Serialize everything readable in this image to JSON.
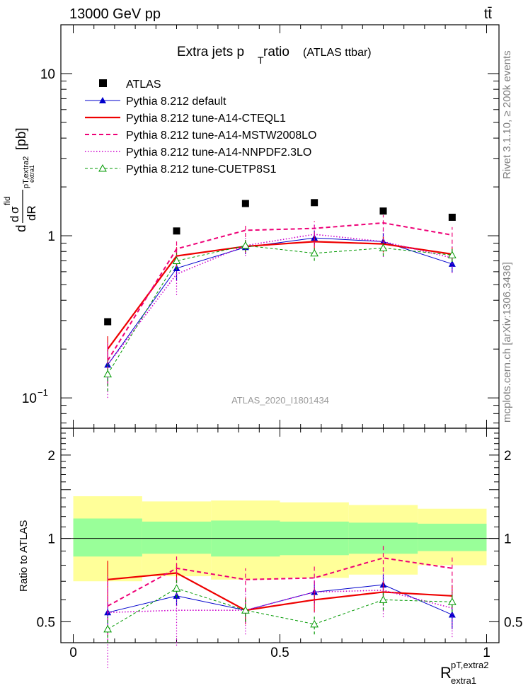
{
  "header": {
    "energy_label": "13000 GeV pp",
    "process_label": "tt̄"
  },
  "side_labels": {
    "rivet": "Rivet 3.1.10, ≥ 200k events",
    "mcplots": "mcplots.cern.ch [arXiv:1306.3436]"
  },
  "watermark": "ATLAS_2020_I1801434",
  "chart_data": [
    {
      "type": "line",
      "panel": "main",
      "title_main": "Extra jets p",
      "title_sub": "T",
      "title_tail": " ratio",
      "title_suffix": "(ATLAS ttbar)",
      "ylabel_parts": {
        "d1": "d",
        "d2": "d",
        "sigma": "σ",
        "fid": "fid",
        "dR": "dR",
        "sub": "pT,extra2",
        "subsub": "extra1",
        "unit": "[pb]"
      },
      "log_y": true,
      "xlim": [
        -0.03,
        1.03
      ],
      "ylim": [
        0.065,
        20
      ],
      "y_ticks": [
        {
          "value": 0.1,
          "mantissa": "10",
          "exponent": "−1"
        },
        {
          "value": 1,
          "mantissa": "1",
          "exponent": ""
        },
        {
          "value": 10,
          "mantissa": "10",
          "exponent": ""
        }
      ],
      "x": [
        0.0833,
        0.25,
        0.4167,
        0.5833,
        0.75,
        0.9167
      ],
      "bins": [
        0,
        0.1667,
        0.3333,
        0.5,
        0.6667,
        0.8333,
        1.0
      ],
      "series": [
        {
          "name": "ATLAS",
          "style": "data",
          "color": "#000000",
          "values": [
            0.295,
            1.07,
            1.58,
            1.6,
            1.42,
            1.3
          ]
        },
        {
          "name": "Pythia 8.212 default",
          "style": "solid-triangle",
          "color": "#0000cc",
          "values": [
            0.16,
            0.63,
            0.85,
            0.97,
            0.92,
            0.67
          ],
          "err": [
            0.04,
            0.1,
            0.08,
            0.1,
            0.12,
            0.08
          ]
        },
        {
          "name": "Pythia 8.212 tune-A14-CTEQL1",
          "style": "solid-thick",
          "color": "#ee0000",
          "values": [
            0.2,
            0.75,
            0.86,
            0.92,
            0.89,
            0.77
          ],
          "err": [
            0.04,
            0.1,
            0.08,
            0.1,
            0.1,
            0.08
          ]
        },
        {
          "name": "Pythia 8.212 tune-A14-MSTW2008LO",
          "style": "dashed",
          "color": "#ee0077",
          "values": [
            0.17,
            0.83,
            1.08,
            1.11,
            1.2,
            1.01
          ],
          "err": [
            0.05,
            0.12,
            0.1,
            0.12,
            0.14,
            0.12
          ]
        },
        {
          "name": "Pythia 8.212 tune-A14-NNPDF2.3LO",
          "style": "dotted",
          "color": "#cc00cc",
          "values": [
            0.16,
            0.58,
            0.87,
            1.02,
            0.92,
            0.73
          ],
          "err": [
            0.06,
            0.15,
            0.12,
            0.15,
            0.18,
            0.14
          ]
        },
        {
          "name": "Pythia 8.212 tune-CUETP8S1",
          "style": "dashed-open-triangle",
          "color": "#009900",
          "values": [
            0.14,
            0.7,
            0.87,
            0.78,
            0.84,
            0.76
          ],
          "err": [
            0.03,
            0.08,
            0.07,
            0.08,
            0.09,
            0.07
          ]
        }
      ]
    },
    {
      "type": "line",
      "panel": "ratio",
      "ylabel": "Ratio to ATLAS",
      "xlabel_main": "R",
      "xlabel_sup": "pT,extra2",
      "xlabel_sub": "extra1",
      "log_y": true,
      "xlim": [
        -0.03,
        1.03
      ],
      "ylim": [
        0.42,
        2.5
      ],
      "x_ticks": [
        {
          "value": 0,
          "label": "0"
        },
        {
          "value": 0.5,
          "label": "0.5"
        },
        {
          "value": 1,
          "label": "1"
        }
      ],
      "y_ticks": [
        {
          "value": 0.5,
          "label": "0.5"
        },
        {
          "value": 1,
          "label": "1"
        },
        {
          "value": 2,
          "label": "2"
        }
      ],
      "bands": {
        "yellow_color": "#ffff99",
        "green_color": "#99ff99",
        "yellow": [
          [
            0.7,
            1.42
          ],
          [
            0.73,
            1.36
          ],
          [
            0.71,
            1.37
          ],
          [
            0.72,
            1.35
          ],
          [
            0.74,
            1.32
          ],
          [
            0.8,
            1.28
          ]
        ],
        "green": [
          [
            0.86,
            1.18
          ],
          [
            0.88,
            1.15
          ],
          [
            0.86,
            1.16
          ],
          [
            0.87,
            1.15
          ],
          [
            0.88,
            1.14
          ],
          [
            0.9,
            1.13
          ]
        ]
      },
      "series": [
        {
          "name": "Pythia 8.212 default",
          "style": "solid-triangle",
          "color": "#0000cc",
          "values": [
            0.54,
            0.62,
            0.55,
            0.64,
            0.68,
            0.53
          ],
          "err": [
            0.05,
            0.05,
            0.05,
            0.06,
            0.06,
            0.06
          ]
        },
        {
          "name": "Pythia 8.212 tune-A14-CTEQL1",
          "style": "solid-thick",
          "color": "#ee0000",
          "values": [
            0.71,
            0.75,
            0.55,
            0.6,
            0.64,
            0.62
          ],
          "err": [
            0.12,
            0.06,
            0.06,
            0.06,
            0.06,
            0.06
          ]
        },
        {
          "name": "Pythia 8.212 tune-A14-MSTW2008LO",
          "style": "dashed",
          "color": "#ee0077",
          "values": [
            0.57,
            0.78,
            0.71,
            0.72,
            0.85,
            0.78
          ],
          "err": [
            0.15,
            0.08,
            0.07,
            0.08,
            0.09,
            0.09
          ]
        },
        {
          "name": "Pythia 8.212 tune-A14-NNPDF2.3LO",
          "style": "dotted",
          "color": "#cc00cc",
          "values": [
            0.54,
            0.55,
            0.55,
            0.64,
            0.65,
            0.56
          ],
          "err": [
            0.2,
            0.14,
            0.1,
            0.1,
            0.13,
            0.12
          ]
        },
        {
          "name": "Pythia 8.212 tune-CUETP8S1",
          "style": "dashed-open-triangle",
          "color": "#009900",
          "values": [
            0.47,
            0.66,
            0.55,
            0.49,
            0.6,
            0.59
          ],
          "err": [
            0.05,
            0.05,
            0.05,
            0.04,
            0.05,
            0.05
          ]
        }
      ]
    }
  ]
}
